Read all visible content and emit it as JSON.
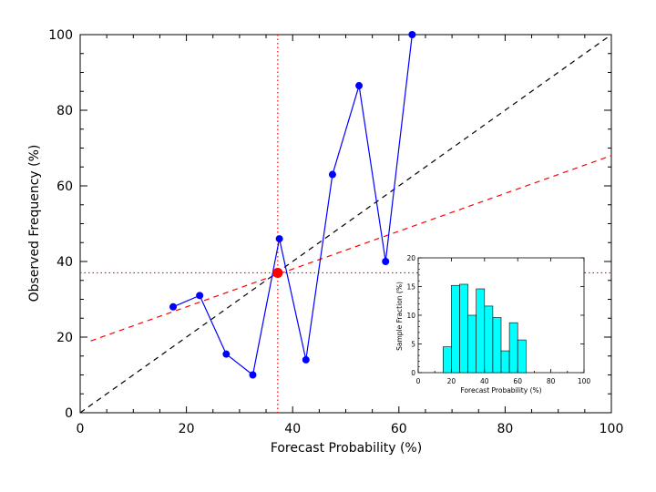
{
  "chart_data": [
    {
      "type": "line",
      "xlabel": "Forecast Probability (%)",
      "ylabel": "Observed Frequency (%)",
      "xlim": [
        0,
        100
      ],
      "ylim": [
        0,
        100
      ],
      "x_ticks": [
        "0",
        "20",
        "40",
        "60",
        "80",
        "100"
      ],
      "y_ticks": [
        "0",
        "20",
        "40",
        "60",
        "80",
        "100"
      ],
      "grid": false,
      "series": [
        {
          "values_x": [
            17.5,
            22.5,
            27.5,
            32.5,
            37.5,
            42.5,
            47.5,
            52.5,
            57.5,
            62.5
          ],
          "values_y": [
            28.0,
            31.0,
            15.5,
            10.0,
            46.0,
            14.0,
            63.0,
            86.5,
            40.0,
            100.0
          ],
          "color": "#0000ff",
          "marker": "circle"
        }
      ],
      "reference_lines": {
        "perfect_reliability": {
          "x": [
            0,
            100
          ],
          "y": [
            0,
            100
          ],
          "color": "#000000",
          "style": "dashed"
        },
        "regression_fit": {
          "x": [
            2,
            100
          ],
          "y": [
            19.0,
            68.0
          ],
          "color": "#ff0000",
          "style": "dashed"
        },
        "climatology_vertical_x": 37.2,
        "climatology_horizontal_y": 37.0,
        "climatology_color": "#ff0000",
        "climatology_style": "dotted"
      },
      "climatology_point": {
        "x": 37.2,
        "y": 37.0,
        "color": "#ff0000"
      }
    },
    {
      "type": "bar",
      "placement": "inset lower-right",
      "xlabel": "Forecast Probability (%)",
      "ylabel": "Sample Fraction (%)",
      "xlim": [
        0,
        100
      ],
      "ylim": [
        0,
        20
      ],
      "x_ticks": [
        "0",
        "20",
        "40",
        "60",
        "80",
        "100"
      ],
      "y_ticks": [
        "0",
        "5",
        "10",
        "15",
        "20"
      ],
      "bin_width": 5,
      "bin_starts": [
        15,
        20,
        25,
        30,
        35,
        40,
        45,
        50,
        55,
        60
      ],
      "values": [
        4.5,
        15.2,
        15.4,
        10.0,
        14.6,
        11.6,
        9.6,
        3.8,
        8.7,
        5.7
      ],
      "color": "#00ffff"
    }
  ]
}
